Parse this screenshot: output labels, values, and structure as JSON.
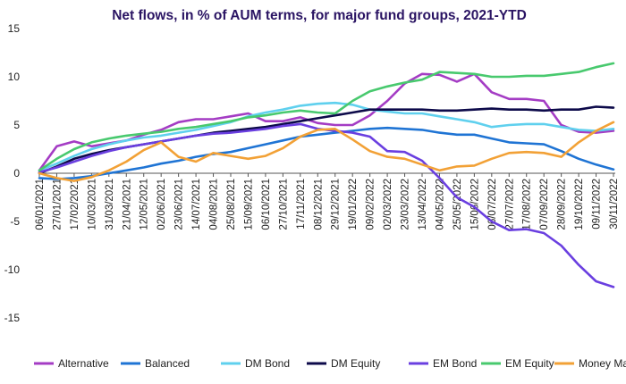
{
  "chart_data": {
    "type": "line",
    "title": "Net flows, in % of AUM terms, for major fund groups, 2021-YTD",
    "xlabel": "",
    "ylabel": "",
    "ylim": [
      -15,
      15
    ],
    "yticks": [
      "15",
      "10",
      "5",
      "0",
      "-5",
      "-10",
      "-15"
    ],
    "ytick_values": [
      15,
      10,
      5,
      0,
      -5,
      -10,
      -15
    ],
    "grid": false,
    "legend_position": "bottom",
    "x_dates": [
      "06/01/2021",
      "27/01/2021",
      "17/02/2021",
      "10/03/2021",
      "31/03/2021",
      "21/04/2021",
      "12/05/2021",
      "02/06/2021",
      "23/06/2021",
      "14/07/2021",
      "04/08/2021",
      "25/08/2021",
      "15/09/2021",
      "06/10/2021",
      "27/10/2021",
      "17/11/2021",
      "08/12/2021",
      "29/12/2021",
      "19/01/2022",
      "09/02/2022",
      "02/03/2022",
      "23/03/2022",
      "13/04/2022",
      "04/05/2022",
      "25/05/2022",
      "15/06/2022",
      "06/07/2022",
      "27/07/2022",
      "17/08/2022",
      "07/09/2022",
      "28/09/2022",
      "19/10/2022",
      "09/11/2022",
      "30/11/2022"
    ],
    "series": [
      {
        "name": "Alternative",
        "color": "#a43cc4",
        "values": [
          0.3,
          2.8,
          3.3,
          2.8,
          3.1,
          3.4,
          4.0,
          4.5,
          5.3,
          5.6,
          5.6,
          5.9,
          6.2,
          5.4,
          5.4,
          5.8,
          5.2,
          5.0,
          5.0,
          6.0,
          7.5,
          9.3,
          10.3,
          10.2,
          9.5,
          10.3,
          8.4,
          7.7,
          7.7,
          7.5,
          5.0,
          4.3,
          4.2,
          4.4
        ]
      },
      {
        "name": "Balanced",
        "color": "#1f74d4",
        "values": [
          -0.5,
          -0.6,
          -0.5,
          -0.3,
          0.0,
          0.3,
          0.6,
          1.0,
          1.3,
          1.7,
          2.0,
          2.2,
          2.6,
          3.0,
          3.4,
          3.8,
          4.0,
          4.2,
          4.4,
          4.6,
          4.7,
          4.6,
          4.5,
          4.2,
          4.0,
          4.0,
          3.6,
          3.2,
          3.1,
          3.0,
          2.3,
          1.5,
          0.9,
          0.4
        ]
      },
      {
        "name": "DM Bond",
        "color": "#5fd0ee",
        "values": [
          0.3,
          1.0,
          1.8,
          2.5,
          3.0,
          3.4,
          3.7,
          3.9,
          4.2,
          4.5,
          4.9,
          5.3,
          5.9,
          6.3,
          6.6,
          7.0,
          7.2,
          7.3,
          7.1,
          6.6,
          6.4,
          6.2,
          6.2,
          5.9,
          5.6,
          5.3,
          4.8,
          5.0,
          5.1,
          5.1,
          4.8,
          4.5,
          4.4,
          4.6
        ]
      },
      {
        "name": "DM Equity",
        "color": "#0d0a4a",
        "values": [
          0.0,
          0.7,
          1.5,
          2.0,
          2.4,
          2.7,
          3.0,
          3.3,
          3.6,
          3.9,
          4.2,
          4.4,
          4.6,
          4.8,
          5.1,
          5.4,
          5.7,
          6.0,
          6.3,
          6.6,
          6.6,
          6.6,
          6.6,
          6.5,
          6.5,
          6.6,
          6.7,
          6.6,
          6.6,
          6.5,
          6.6,
          6.6,
          6.9,
          6.8
        ]
      },
      {
        "name": "EM Bond",
        "color": "#6a3fe0",
        "values": [
          0.1,
          0.6,
          1.2,
          1.8,
          2.3,
          2.7,
          3.0,
          3.3,
          3.6,
          3.9,
          4.1,
          4.2,
          4.4,
          4.6,
          4.9,
          5.1,
          4.6,
          4.4,
          4.2,
          3.8,
          2.3,
          2.2,
          1.3,
          -0.5,
          -2.5,
          -3.5,
          -5.0,
          -5.9,
          -5.8,
          -6.2,
          -7.5,
          -9.5,
          -11.2,
          -11.8
        ]
      },
      {
        "name": "EM Equity",
        "color": "#48c96e",
        "values": [
          0.3,
          1.5,
          2.5,
          3.2,
          3.6,
          3.9,
          4.1,
          4.3,
          4.6,
          4.8,
          5.1,
          5.4,
          5.8,
          6.0,
          6.3,
          6.5,
          6.3,
          6.2,
          7.5,
          8.5,
          9.0,
          9.4,
          9.7,
          10.5,
          10.4,
          10.3,
          10.0,
          10.0,
          10.1,
          10.1,
          10.3,
          10.5,
          11.0,
          11.4
        ]
      },
      {
        "name": "Money Market",
        "color": "#f2a136",
        "values": [
          0.0,
          -0.5,
          -0.8,
          -0.4,
          0.3,
          1.2,
          2.4,
          3.2,
          1.7,
          1.2,
          2.1,
          1.8,
          1.5,
          1.8,
          2.6,
          3.8,
          4.5,
          4.6,
          3.5,
          2.3,
          1.7,
          1.5,
          0.9,
          0.3,
          0.7,
          0.8,
          1.5,
          2.1,
          2.2,
          2.1,
          1.7,
          3.2,
          4.4,
          5.3
        ]
      }
    ]
  }
}
